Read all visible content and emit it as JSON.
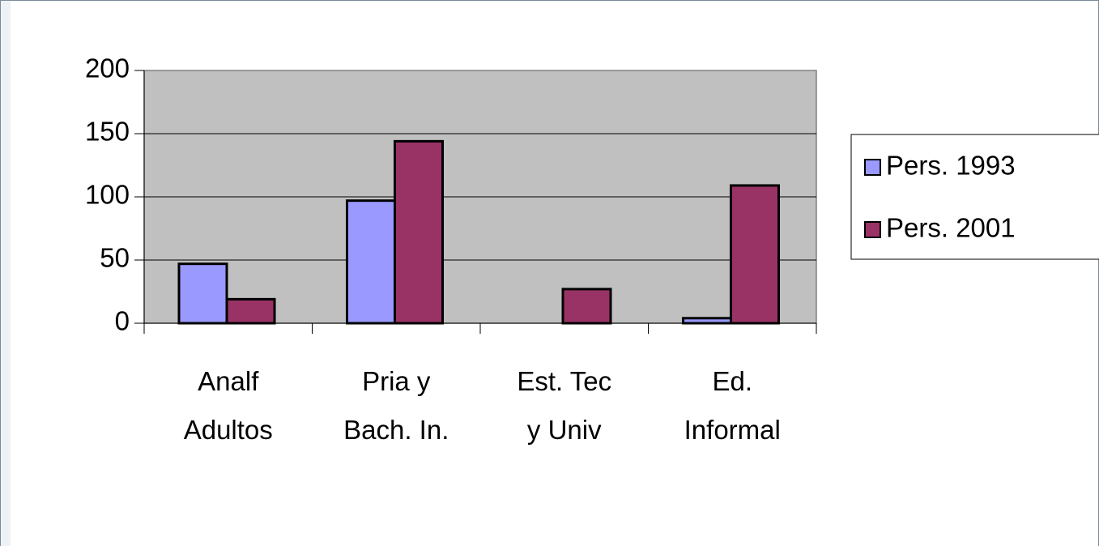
{
  "chart_data": {
    "type": "bar",
    "categories": [
      [
        "Analf",
        "Adultos"
      ],
      [
        "Pria y",
        "Bach. In."
      ],
      [
        "Est. Tec",
        "y Univ"
      ],
      [
        "Ed.",
        "Informal"
      ]
    ],
    "series": [
      {
        "name": "Pers. 1993",
        "color": "#9999ff",
        "values": [
          47,
          97,
          0,
          4
        ]
      },
      {
        "name": "Pers. 2001",
        "color": "#993366",
        "values": [
          19,
          144,
          27,
          109
        ]
      }
    ],
    "ylim": [
      0,
      200
    ],
    "yticks": [
      0,
      50,
      100,
      150,
      200
    ],
    "grid": true,
    "legend": "right"
  }
}
